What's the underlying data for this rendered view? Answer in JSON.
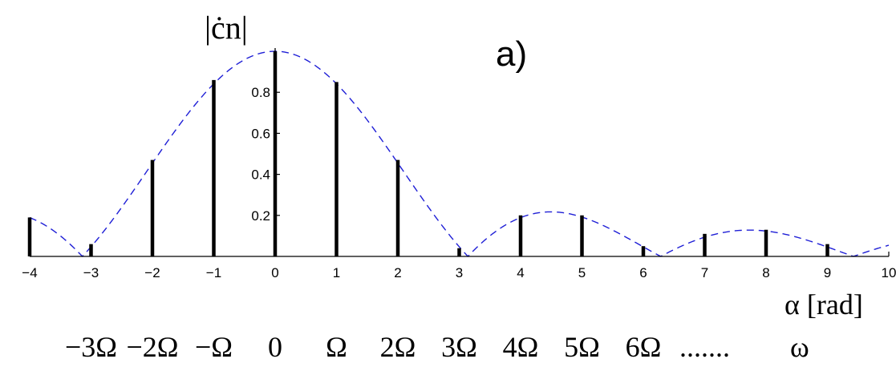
{
  "chart_data": {
    "type": "stem",
    "panel_label": "a)",
    "ylabel": "|ċn|",
    "xlabel": "α [rad]",
    "xlim": [
      -4,
      10
    ],
    "ylim": [
      0,
      1
    ],
    "x_ticks": [
      -4,
      -3,
      -2,
      -1,
      0,
      1,
      2,
      3,
      4,
      5,
      6,
      7,
      8,
      9,
      10
    ],
    "x_tick_labels": [
      "−4",
      "−3",
      "−2",
      "−1",
      "0",
      "1",
      "2",
      "3",
      "4",
      "5",
      "6",
      "7",
      "8",
      "9",
      "10"
    ],
    "y_ticks": [
      0.2,
      0.4,
      0.6,
      0.8
    ],
    "y_tick_labels": [
      "0.2",
      "0.4",
      "0.6",
      "0.8"
    ],
    "stems": {
      "x": [
        -4,
        -3,
        -2,
        -1,
        0,
        1,
        2,
        3,
        4,
        5,
        6,
        7,
        8,
        9,
        10
      ],
      "y": [
        0.19,
        0.06,
        0.47,
        0.86,
        1.0,
        0.85,
        0.47,
        0.04,
        0.2,
        0.2,
        0.05,
        0.11,
        0.13,
        0.06,
        0.0
      ],
      "color": "#000000"
    },
    "envelope": {
      "description": "|sin(x)/x| envelope",
      "style": "dashed",
      "color": "#1f1fd6"
    },
    "omega_axis": {
      "labels": [
        "−3Ω",
        "−2Ω",
        "−Ω",
        "0",
        "Ω",
        "2Ω",
        "3Ω",
        "4Ω",
        "5Ω",
        "6Ω",
        "......."
      ],
      "positions_in_rad": [
        -3,
        -2,
        -1,
        0,
        1,
        2,
        3,
        4,
        5,
        6,
        7
      ],
      "variable": "ω"
    }
  }
}
